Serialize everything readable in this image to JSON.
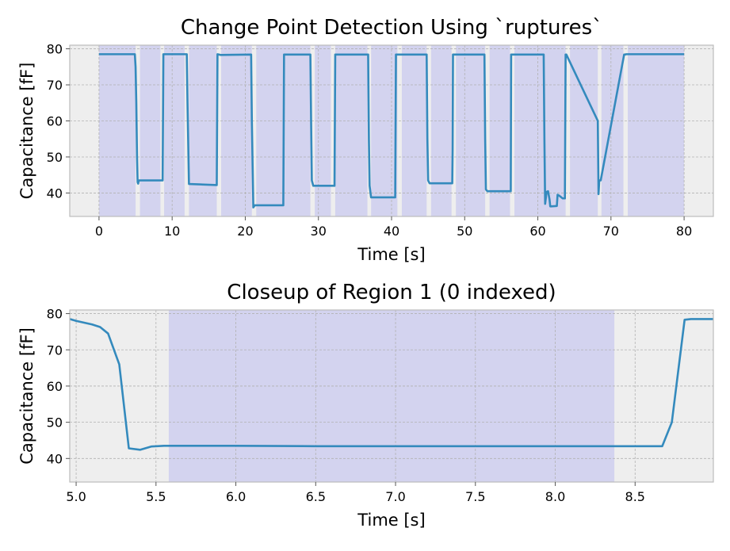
{
  "colors": {
    "line": "#348ABD",
    "axes_bg": "#EEEEEE",
    "segment": "#D3D3EF",
    "grid": "#B2B2B2",
    "spine": "#BCBCBC"
  },
  "chart_data": [
    {
      "type": "line",
      "title": "Change Point Detection Using `ruptures`",
      "xlabel": "Time [s]",
      "ylabel": "Capacitance [fF]",
      "xlim": [
        -4,
        84
      ],
      "ylim": [
        33.5,
        81
      ],
      "xticks": [
        0,
        10,
        20,
        30,
        40,
        50,
        60,
        70,
        80
      ],
      "yticks": [
        40,
        50,
        60,
        70,
        80
      ],
      "grid": true,
      "highlighted_segments": [
        [
          0,
          5.0
        ],
        [
          5.6,
          8.4
        ],
        [
          8.9,
          11.7
        ],
        [
          12.3,
          16.1
        ],
        [
          16.7,
          20.9
        ],
        [
          21.5,
          28.9
        ],
        [
          29.5,
          31.7
        ],
        [
          32.3,
          36.7
        ],
        [
          37.2,
          40.8
        ],
        [
          41.4,
          44.8
        ],
        [
          45.4,
          48.2
        ],
        [
          48.8,
          52.8
        ],
        [
          53.4,
          56.2
        ],
        [
          56.8,
          63.8
        ],
        [
          64.4,
          68.2
        ],
        [
          68.7,
          71.7
        ],
        [
          72.3,
          80.0
        ]
      ],
      "series": [
        {
          "x": [
            0,
            4.9,
            5.0,
            5.1,
            5.2,
            5.28,
            5.35,
            5.45,
            8.7,
            8.8,
            12.0,
            12.1,
            12.3,
            16.1,
            16.2,
            16.6,
            20.8,
            20.9,
            21.1,
            21.3,
            25.2,
            25.3,
            28.9,
            29.0,
            29.1,
            29.3,
            32.2,
            32.3,
            36.8,
            36.9,
            37.0,
            37.2,
            40.5,
            40.6,
            44.8,
            44.9,
            45.0,
            45.2,
            48.3,
            48.35,
            48.4,
            52.7,
            52.8,
            52.9,
            53.1,
            56.3,
            56.35,
            60.8,
            60.9,
            61.0,
            61.2,
            61.4,
            61.6,
            61.7,
            61.8,
            62.6,
            62.7,
            62.9,
            63.4,
            63.7,
            63.8,
            63.9,
            68.2,
            68.3,
            68.4,
            68.6,
            71.8,
            71.9,
            72.1,
            72.3,
            80.0
          ],
          "y": [
            78.5,
            78.5,
            75.0,
            65.0,
            50.0,
            43.0,
            42.6,
            43.5,
            43.5,
            78.5,
            78.5,
            65.0,
            42.5,
            42.2,
            78.5,
            78.3,
            78.4,
            60.0,
            36.0,
            36.6,
            36.6,
            78.4,
            78.4,
            60.0,
            43.5,
            42.0,
            42.0,
            78.4,
            78.4,
            55.0,
            42.0,
            38.8,
            38.8,
            78.4,
            78.4,
            55.0,
            43.5,
            42.7,
            42.7,
            52.0,
            78.4,
            78.4,
            55.0,
            41.0,
            40.5,
            40.5,
            78.4,
            78.4,
            55.0,
            37.0,
            40.3,
            40.5,
            38.2,
            36.3,
            36.3,
            36.4,
            39.5,
            39.3,
            38.5,
            38.5,
            78.4,
            78.4,
            60.0,
            39.7,
            43.5,
            43.5,
            78.4,
            78.4,
            78.5,
            78.5,
            78.5
          ]
        }
      ]
    },
    {
      "type": "line",
      "title": "Closeup of Region 1 (0 indexed)",
      "xlabel": "Time [s]",
      "ylabel": "Capacitance [fF]",
      "xlim": [
        4.96,
        8.99
      ],
      "ylim": [
        33.5,
        81
      ],
      "xticks": [
        5.0,
        5.5,
        6.0,
        6.5,
        7.0,
        7.5,
        8.0,
        8.5
      ],
      "xticklabels": [
        "5.0",
        "5.5",
        "6.0",
        "6.5",
        "7.0",
        "7.5",
        "8.0",
        "8.5"
      ],
      "yticks": [
        40,
        50,
        60,
        70,
        80
      ],
      "grid": true,
      "highlighted_segments": [
        [
          5.58,
          8.37
        ]
      ],
      "series": [
        {
          "x": [
            4.96,
            5.0,
            5.1,
            5.15,
            5.2,
            5.27,
            5.33,
            5.4,
            5.47,
            5.55,
            6.0,
            6.5,
            7.0,
            7.5,
            8.0,
            8.3,
            8.5,
            8.67,
            8.73,
            8.81,
            8.85,
            8.99
          ],
          "y": [
            78.5,
            78.0,
            77.0,
            76.3,
            74.5,
            66.0,
            42.8,
            42.4,
            43.3,
            43.5,
            43.5,
            43.4,
            43.4,
            43.4,
            43.4,
            43.4,
            43.4,
            43.4,
            50.0,
            78.3,
            78.5,
            78.5
          ]
        }
      ]
    }
  ]
}
